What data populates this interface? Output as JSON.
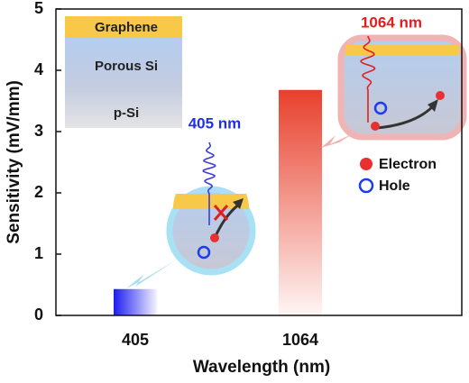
{
  "chart_data": {
    "type": "bar",
    "x_label": "Wavelength (nm)",
    "y_label": "Sensitivity (mV/mm)",
    "categories": [
      "405",
      "1064"
    ],
    "values": [
      0.43,
      3.68
    ],
    "colors": [
      "#1c1cf0",
      "#e8402c"
    ],
    "ylim": [
      0,
      5
    ],
    "yticks": [
      0,
      1,
      2,
      3,
      4,
      5
    ],
    "illustration": {
      "layers": [
        "Graphene",
        "Porous Si",
        "p-Si"
      ],
      "wavelength_labels": [
        "405 nm",
        "1064 nm"
      ],
      "legend": [
        "Electron",
        "Hole"
      ]
    }
  }
}
